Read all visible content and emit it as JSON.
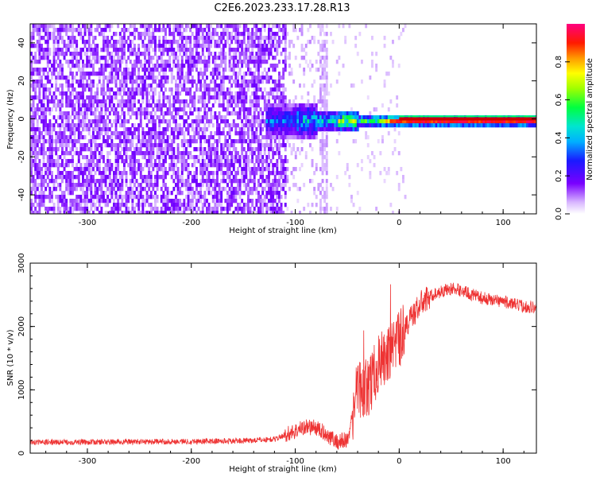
{
  "title": "C2E6.2023.233.17.28.R13",
  "colors": {
    "snr_line": "#ee3333",
    "signal_core": "#cc0000",
    "noise": "#6a00ff"
  },
  "chart_data": [
    {
      "type": "heatmap",
      "xlabel": "Height of straight line (km)",
      "ylabel": "Frequency (Hz)",
      "xlim": [
        -355,
        132
      ],
      "ylim": [
        -50,
        50
      ],
      "xticks": [
        -300,
        -200,
        -100,
        0,
        100
      ],
      "yticks": [
        -40,
        -20,
        0,
        20,
        40
      ],
      "colorbar": {
        "label": "Normalized spectral amplitude",
        "range": [
          0,
          1
        ],
        "ticks": [
          0.0,
          0.2,
          0.4,
          0.6,
          0.8
        ],
        "tick_labels": [
          "0.0",
          "0.2",
          "0.4",
          "0.6",
          "0.8"
        ],
        "colormap": "rainbow (white → purple → blue → cyan → green → yellow → red → magenta)"
      },
      "features": {
        "noise_band_until_km": -110,
        "sparse_noise_range_km": [
          -110,
          -70
        ],
        "signal_start_km": -110,
        "signal_center_hz": 0,
        "signal_end_km": 132
      }
    },
    {
      "type": "line",
      "xlabel": "Height of straight line (km)",
      "ylabel": "SNR (10 * v/v)",
      "xlim": [
        -355,
        132
      ],
      "ylim": [
        0,
        3000
      ],
      "xticks": [
        -300,
        -200,
        -100,
        0,
        100
      ],
      "yticks": [
        0,
        1000,
        2000,
        3000
      ],
      "series": [
        {
          "x": [
            -355,
            -300,
            -250,
            -200,
            -150,
            -120,
            -100,
            -90,
            -80,
            -70,
            -60,
            -50,
            -45,
            -40,
            -35,
            -30,
            -25,
            -20,
            -15,
            -10,
            -5,
            0,
            10,
            20,
            30,
            40,
            50,
            60,
            70,
            80,
            90,
            100,
            110,
            120,
            132
          ],
          "values": [
            170,
            175,
            180,
            185,
            195,
            220,
            350,
            420,
            400,
            300,
            180,
            200,
            600,
            1050,
            1000,
            1050,
            1200,
            1400,
            1500,
            1550,
            1600,
            1800,
            2100,
            2350,
            2480,
            2550,
            2600,
            2570,
            2500,
            2450,
            2420,
            2400,
            2350,
            2320,
            2300
          ]
        }
      ]
    }
  ]
}
